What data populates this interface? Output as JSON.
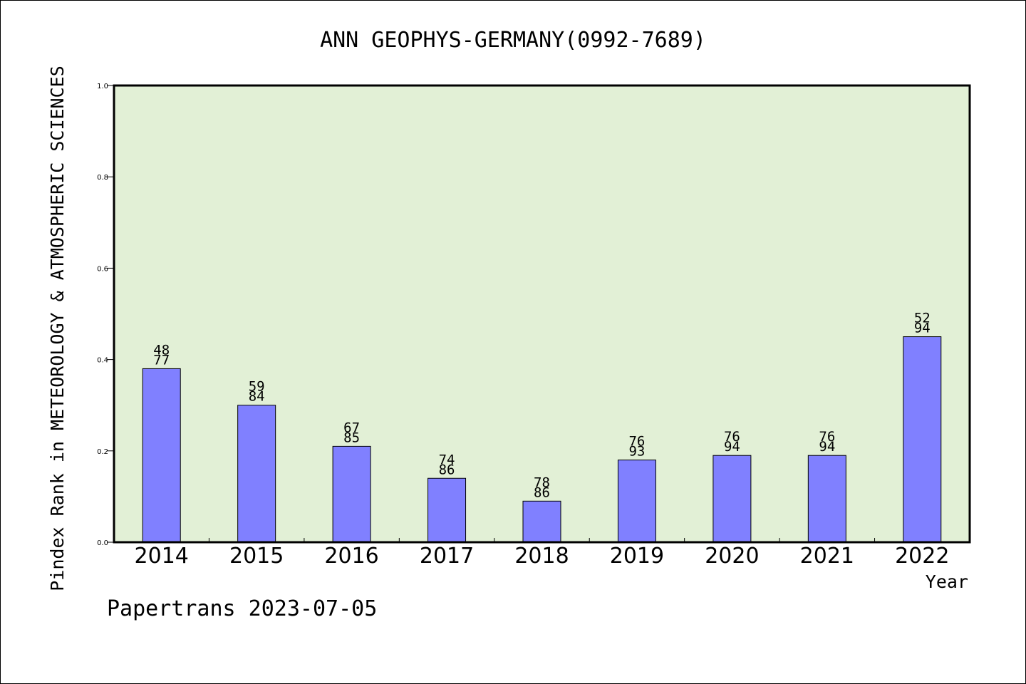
{
  "chart_data": {
    "type": "bar",
    "title": "ANN GEOPHYS-GERMANY(0992-7689)",
    "xlabel": "Year",
    "ylabel": "Pindex Rank in METEOROLOGY & ATMOSPHERIC SCIENCES",
    "footer": "Papertrans 2023-07-05",
    "ylim": [
      0,
      1.0
    ],
    "yticks": [
      "0.0",
      "0.2",
      "0.4",
      "0.6",
      "0.8",
      "1.0"
    ],
    "ytick_values": [
      0.0,
      0.2,
      0.4,
      0.6,
      0.8,
      1.0
    ],
    "categories": [
      "2014",
      "2015",
      "2016",
      "2017",
      "2018",
      "2019",
      "2020",
      "2021",
      "2022"
    ],
    "values": [
      0.38,
      0.3,
      0.21,
      0.14,
      0.09,
      0.18,
      0.19,
      0.19,
      0.45
    ],
    "labels_top": [
      "48",
      "59",
      "67",
      "74",
      "78",
      "76",
      "76",
      "76",
      "52"
    ],
    "labels_bottom": [
      "77",
      "84",
      "85",
      "86",
      "86",
      "93",
      "94",
      "94",
      "94"
    ],
    "grid": false,
    "plot_background": "#e2f0d6",
    "bar_color": "#8080ff"
  }
}
